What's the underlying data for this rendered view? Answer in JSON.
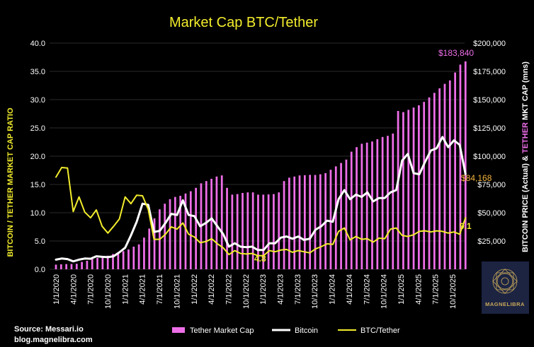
{
  "colors": {
    "background": "#000000",
    "tether": "#ee6ee8",
    "bitcoin": "#ffffff",
    "ratio": "#f2ec2c",
    "price_label": "#f4b43c",
    "logo_bg": "#1c2442",
    "logo_gold": "#c9a85a"
  },
  "source": {
    "line1": "Source: Messari.io",
    "line2": "blog.magnelibra.com"
  },
  "logo": {
    "text": "MAGNELIBRA"
  },
  "chart_data": {
    "type": "bar",
    "title": "Market Cap BTC/Tether",
    "left_axis_label": "BITCOIN / TETHER MARKET CAP RATIO",
    "right_axis_label_parts": [
      "BITCOIN PRICE (Actual) & ",
      "TETHER",
      " MKT CAP (mns)"
    ],
    "ylim_left": [
      0,
      40
    ],
    "ylim_right": [
      0,
      200000
    ],
    "left_ticks": [
      "0.0",
      "5.0",
      "10.0",
      "15.0",
      "20.0",
      "25.0",
      "30.0",
      "35.0",
      "40.0"
    ],
    "right_ticks": [
      "$0",
      "$25,000",
      "$50,000",
      "$75,000",
      "$100,000",
      "$125,000",
      "$150,000",
      "$175,000",
      "$200,000"
    ],
    "date_labels": [
      "1/1/2020",
      "4/1/2020",
      "7/1/2020",
      "10/1/2020",
      "1/1/2021",
      "4/1/2021",
      "7/1/2021",
      "10/1/2021",
      "1/1/2022",
      "4/1/2022",
      "7/1/2022",
      "10/1/2022",
      "1/1/2023",
      "4/1/2023",
      "7/1/2023",
      "10/1/2023",
      "1/1/2024",
      "4/1/2024",
      "7/1/2024",
      "10/1/2024",
      "1/1/2025",
      "4/1/2025",
      "7/1/2025",
      "10/1/2025"
    ],
    "bars_per_label": 4,
    "legend": [
      {
        "label": "Tether Market Cap",
        "kind": "bar",
        "color": "#ee6ee8"
      },
      {
        "label": "Bitcoin",
        "kind": "line",
        "color": "#ffffff"
      },
      {
        "label": "BTC/Tether",
        "kind": "line",
        "color": "#f2ec2c"
      }
    ],
    "series": [
      {
        "name": "Tether Market Cap",
        "axis": "right",
        "values": [
          4100,
          4400,
          4600,
          4700,
          4900,
          6500,
          7500,
          9200,
          10000,
          11000,
          12000,
          13500,
          15000,
          16000,
          17500,
          20000,
          22000,
          28000,
          36000,
          45000,
          53000,
          58000,
          62000,
          64000,
          65000,
          67000,
          69000,
          72000,
          76000,
          78000,
          80000,
          82000,
          83000,
          72000,
          66000,
          66500,
          67500,
          68000,
          68000,
          66000,
          66000,
          66200,
          66500,
          68000,
          78000,
          81000,
          82000,
          83000,
          83200,
          83500,
          83400,
          84000,
          85000,
          88000,
          91000,
          94000,
          97000,
          104000,
          108000,
          111000,
          112000,
          113000,
          115000,
          117000,
          118000,
          120000,
          140000,
          139000,
          141000,
          143000,
          145000,
          148000,
          152000,
          156000,
          160000,
          164000,
          167000,
          174000,
          181000,
          183840
        ]
      },
      {
        "name": "Bitcoin",
        "axis": "right",
        "values": [
          8500,
          9500,
          9000,
          7000,
          8500,
          9500,
          9300,
          11500,
          11000,
          10700,
          11500,
          15000,
          19000,
          30000,
          42000,
          58000,
          57000,
          33000,
          34000,
          41000,
          49000,
          48000,
          61000,
          48000,
          47000,
          38000,
          41000,
          45000,
          38000,
          31000,
          20000,
          23000,
          20000,
          19500,
          20000,
          17000,
          17000,
          23000,
          23000,
          28000,
          29000,
          27000,
          29000,
          26000,
          27000,
          35000,
          38000,
          43000,
          42000,
          62000,
          70000,
          62000,
          66000,
          64000,
          68000,
          60000,
          63000,
          63000,
          68000,
          70000,
          96000,
          102000,
          85000,
          84000,
          95000,
          105000,
          107000,
          117000,
          108000,
          114000,
          110000,
          84168
        ]
      },
      {
        "name": "BTC/Tether",
        "axis": "left",
        "values": [
          16.3,
          18.0,
          17.9,
          10.2,
          12.8,
          10.1,
          9.1,
          10.5,
          7.6,
          6.4,
          7.6,
          8.9,
          12.8,
          11.6,
          13.1,
          13.0,
          10.6,
          5.3,
          5.3,
          6.2,
          7.5,
          7.1,
          8.2,
          6.2,
          5.7,
          4.7,
          4.9,
          5.4,
          4.5,
          3.8,
          2.6,
          3.3,
          2.8,
          2.7,
          2.8,
          2.4,
          2.4,
          3.3,
          3.1,
          3.4,
          3.5,
          3.0,
          3.3,
          3.1,
          2.9,
          3.6,
          4.0,
          4.5,
          4.4,
          6.7,
          7.3,
          5.2,
          5.8,
          5.3,
          5.4,
          4.8,
          5.5,
          5.4,
          7.1,
          7.3,
          6.0,
          5.8,
          6.1,
          6.7,
          6.8,
          6.6,
          6.8,
          6.7,
          6.4,
          6.6,
          6.2,
          9.1
        ]
      }
    ],
    "annotations": {
      "tether_last": "$183,840",
      "bitcoin_last": "$84,168",
      "ratio_last": "9.1",
      "ratio_min": "4.8"
    }
  }
}
